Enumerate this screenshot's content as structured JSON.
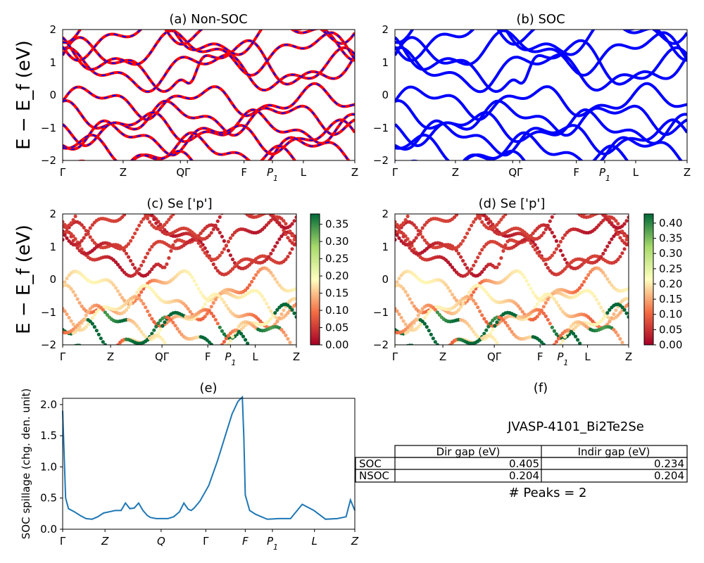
{
  "figure": {
    "energy_ylabel": "E − E_f (eV)",
    "kpath_labels": [
      "Γ",
      "Z",
      "Q",
      "Γ",
      "F",
      "P1",
      "L",
      "Z"
    ],
    "energy_ticks": [
      "2",
      "1",
      "0",
      "−1",
      "−2"
    ]
  },
  "chart_data": [
    {
      "id": "a",
      "type": "line",
      "title": "(a) Non-SOC",
      "ylabel": "E − E_f (eV)",
      "ylim": [
        -2,
        2
      ],
      "x_ticks": [
        "Γ",
        "Z",
        "Q",
        "Γ",
        "F",
        "P1",
        "L",
        "Z"
      ],
      "series": [
        {
          "name": "",
          "color": "#ff0000",
          "values": "band structure (approx.)"
        },
        {
          "name": "",
          "color": "#0000ff",
          "style": "dashed"
        }
      ]
    },
    {
      "id": "b",
      "type": "line",
      "title": "(b) SOC",
      "ylim": [
        -2,
        2
      ],
      "x_ticks": [
        "Γ",
        "Z",
        "Q",
        "Γ",
        "F",
        "P1",
        "L",
        "Z"
      ],
      "series": [
        {
          "name": "",
          "color": "#0000ff"
        }
      ]
    },
    {
      "id": "c",
      "type": "scatter",
      "title": "(c)  Se ['p']",
      "ylabel": "E − E_f (eV)",
      "ylim": [
        -2,
        2
      ],
      "x_ticks": [
        "Γ",
        "Z",
        "QΓ",
        "F",
        "P1",
        "L",
        "Z"
      ],
      "colorbar": {
        "ticks": [
          "0.35",
          "0.30",
          "0.25",
          "0.20",
          "0.15",
          "0.10",
          "0.05",
          "0.00"
        ],
        "max": 0.38,
        "colormap": "RdYlGn"
      }
    },
    {
      "id": "d",
      "type": "scatter",
      "title": "(d) Se ['p']",
      "ylim": [
        -2,
        2
      ],
      "x_ticks": [
        "Γ",
        "Z",
        "QΓ",
        "F",
        "P1",
        "L",
        "Z"
      ],
      "colorbar": {
        "ticks": [
          "0.40",
          "0.35",
          "0.30",
          "0.25",
          "0.20",
          "0.15",
          "0.10",
          "0.05",
          "0.00"
        ],
        "max": 0.43,
        "colormap": "RdYlGn"
      }
    },
    {
      "id": "e",
      "type": "line",
      "title": "(e)",
      "ylabel": "SOC spillage (chg. den. unit)",
      "ylim": [
        0,
        2.1
      ],
      "y_ticks": [
        "2.0",
        "1.5",
        "1.0",
        "0.5",
        "0.0"
      ],
      "x_ticks": [
        "Γ",
        "Z",
        "Q",
        "Γ",
        "F",
        "P1",
        "L",
        "Z"
      ],
      "x": [
        0,
        0.01,
        0.02,
        0.04,
        0.06,
        0.08,
        0.1,
        0.12,
        0.14,
        0.16,
        0.18,
        0.2,
        0.215,
        0.23,
        0.245,
        0.26,
        0.275,
        0.29,
        0.3,
        0.32,
        0.34,
        0.36,
        0.38,
        0.4,
        0.415,
        0.43,
        0.44,
        0.45,
        0.47,
        0.5,
        0.53,
        0.56,
        0.58,
        0.6,
        0.615,
        0.62,
        0.625,
        0.64,
        0.66,
        0.7,
        0.74,
        0.78,
        0.82,
        0.86,
        0.9,
        0.94,
        0.97,
        0.985,
        1.0
      ],
      "values": [
        1.9,
        0.5,
        0.33,
        0.28,
        0.22,
        0.17,
        0.16,
        0.2,
        0.26,
        0.28,
        0.3,
        0.3,
        0.42,
        0.33,
        0.34,
        0.42,
        0.3,
        0.22,
        0.19,
        0.17,
        0.17,
        0.17,
        0.2,
        0.28,
        0.42,
        0.32,
        0.3,
        0.34,
        0.45,
        0.7,
        1.1,
        1.55,
        1.85,
        2.05,
        2.12,
        1.5,
        0.55,
        0.3,
        0.24,
        0.16,
        0.17,
        0.17,
        0.4,
        0.3,
        0.16,
        0.17,
        0.2,
        0.47,
        0.3
      ]
    },
    {
      "id": "f",
      "type": "table",
      "title": "(f)",
      "subtitle": "JVASP-4101_Bi2Te2Se",
      "columns": [
        "",
        "Dir gap (eV)",
        "Indir gap (eV)"
      ],
      "rows": [
        [
          "SOC",
          "0.405",
          "0.234"
        ],
        [
          "NSOC",
          "0.204",
          "0.204"
        ]
      ],
      "footer": "# Peaks = 2"
    }
  ]
}
